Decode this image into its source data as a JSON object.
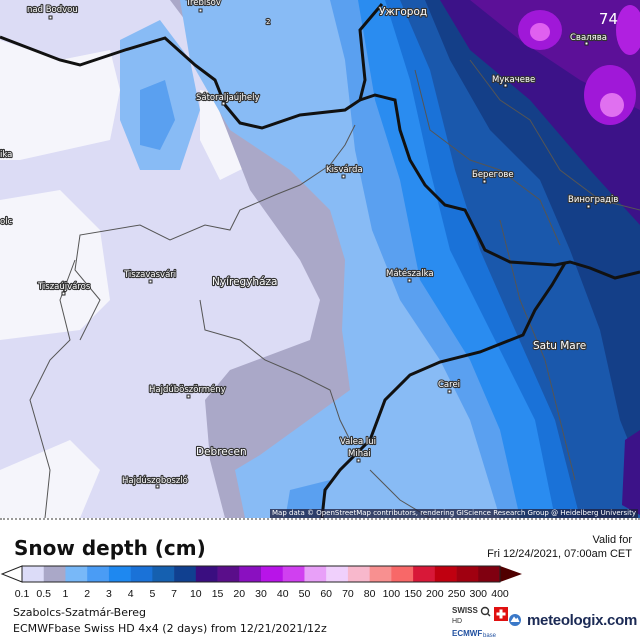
{
  "map": {
    "corner_value": "74",
    "contour_label": "2",
    "attribution": "Map data © OpenStreetMap contributors, rendering GIScience Research Group @ Heidelberg University",
    "cities": {
      "nad_bodvou": "nad Bodvou",
      "trebisov": "Trebišov",
      "uzhhorod": "Ужгород",
      "svalyava": "Свалява",
      "mukachevo": "Мукачеве",
      "satoraljaujhely": "Sátoraljaújhely",
      "kisvarda": "Kisvárda",
      "berehove": "Берегове",
      "vynohradiv": "Виноградів",
      "ika": "ika",
      "olc": "olc",
      "tiszaujvaros": "Tiszaújváros",
      "tiszavasvari": "Tiszavasvári",
      "nyiregyhaza": "Nyíregyháza",
      "mateszalka": "Mátészalka",
      "satu_mare": "Satu Mare",
      "carei": "Carei",
      "hajduboszormeny": "Hajdúböszörmény",
      "debrecen": "Debrecen",
      "valea_lui": "Valea lui",
      "mihai": "Mihai",
      "hajduszoboszlo": "Hajdúszoboszló"
    }
  },
  "legend": {
    "title": "Snow depth (cm)",
    "valid_label": "Valid for",
    "valid_time": "Fri 12/24/2021, 07:00am CET",
    "ticks": [
      "0.1",
      "0.5",
      "1",
      "2",
      "3",
      "4",
      "5",
      "7",
      "10",
      "15",
      "20",
      "30",
      "40",
      "50",
      "60",
      "70",
      "80",
      "100",
      "150",
      "200",
      "250",
      "300",
      "400"
    ],
    "colors": [
      "#dcdcf8",
      "#aaa8c8",
      "#78b8f8",
      "#4a9cf5",
      "#1e88f0",
      "#1a72d8",
      "#1560b0",
      "#104090",
      "#3a0e80",
      "#5a0e8a",
      "#8a10c0",
      "#b814e8",
      "#d040f0",
      "#e8a0f8",
      "#f0d0fc",
      "#f8b8cc",
      "#f89090",
      "#f86868",
      "#d81838",
      "#c00010",
      "#a00010",
      "#800010"
    ],
    "under_color": "#ffffff",
    "over_color": "#500000"
  },
  "footer": {
    "region": "Szabolcs-Szatmár-Bereg",
    "model": "ECMWFbase Swiss HD 4x4 (2 days) from  12/21/2021/12z",
    "brand": "meteologix.com",
    "badge_swiss": "SWISS",
    "badge_hd": "HD",
    "badge_ecmwf": "ECMWF",
    "badge_base": "base"
  }
}
